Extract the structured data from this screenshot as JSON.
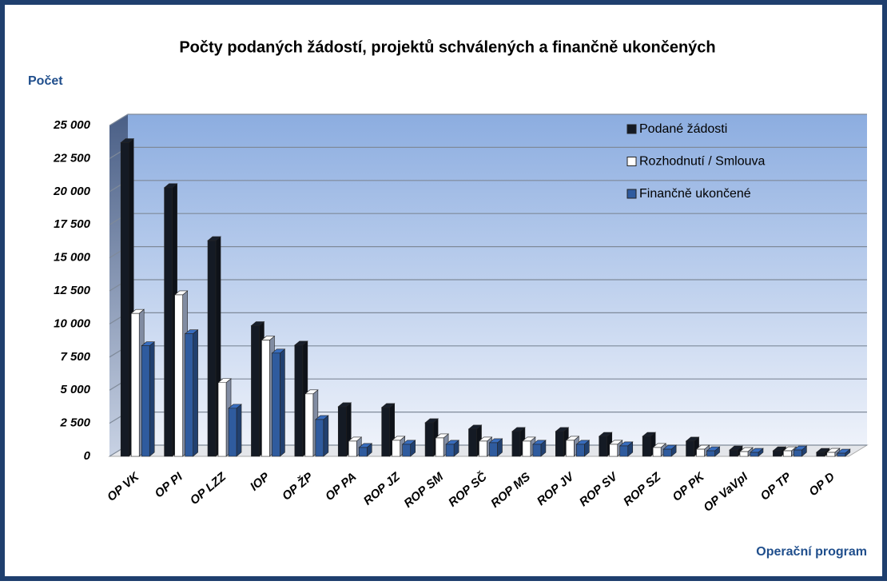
{
  "chart_data": {
    "type": "bar3d",
    "title": "Počty podaných žádostí, projektů schválených a finančně ukončených",
    "y_label": "Počet",
    "x_label": "Operační program",
    "categories": [
      "OP VK",
      "OP PI",
      "OP LZZ",
      "IOP",
      "OP ŽP",
      "OP PA",
      "ROP JZ",
      "ROP SM",
      "ROP SČ",
      "ROP MS",
      "ROP JV",
      "ROP SV",
      "ROP SZ",
      "OP PK",
      "OP VaVpI",
      "OP TP",
      "OP D"
    ],
    "series": [
      {
        "name": "Podané žádosti",
        "color": "#141a24",
        "values": [
          23700,
          20300,
          16300,
          9870,
          8400,
          3750,
          3690,
          2540,
          2060,
          1880,
          1880,
          1510,
          1510,
          1150,
          480,
          420,
          300
        ]
      },
      {
        "name": "Rozhodnutí / Smlouva",
        "color": "#ffffff",
        "values": [
          10800,
          12200,
          5570,
          8780,
          4720,
          1150,
          1210,
          1390,
          1150,
          1150,
          1210,
          910,
          670,
          540,
          360,
          420,
          300
        ]
      },
      {
        "name": "Finančně ukončené",
        "color": "#2f5b9e",
        "values": [
          8350,
          9260,
          3630,
          7800,
          2780,
          670,
          910,
          910,
          1030,
          910,
          910,
          790,
          540,
          420,
          300,
          480,
          240
        ]
      }
    ],
    "ylim": [
      0,
      25000
    ],
    "yticks": [
      0,
      {
        "value": 2500,
        "label": "2 500"
      },
      {
        "value": 5000,
        "label": "5 000"
      },
      {
        "value": 7500,
        "label": "7 500"
      },
      {
        "value": 10000,
        "label": "10 000"
      },
      {
        "value": 12500,
        "label": "12 500"
      },
      {
        "value": 15000,
        "label": "15 000"
      },
      {
        "value": 17500,
        "label": "17 500"
      },
      {
        "value": 20000,
        "label": "20 000"
      },
      {
        "value": 22500,
        "label": "22 500"
      },
      {
        "value": 25000,
        "label": "25 000"
      }
    ],
    "grid": true,
    "legend": "top-right"
  }
}
